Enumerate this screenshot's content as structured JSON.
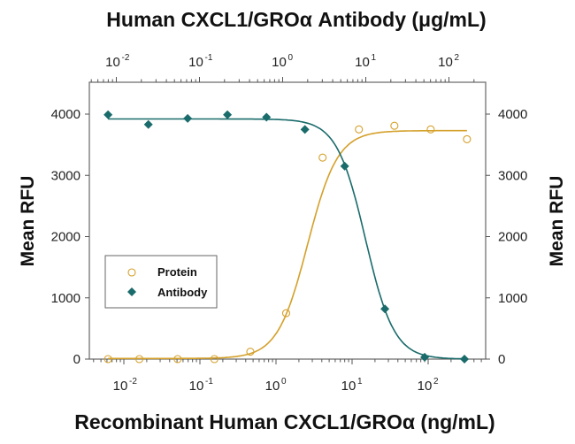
{
  "chart_data": {
    "type": "scatter",
    "title": "Human CXCL1/GROα Antibody (μg/mL)",
    "xlabel": "Recombinant Human CXCL1/GROα (ng/mL)",
    "ylabel": "Mean RFU",
    "ylabel_right": "Mean RFU",
    "x_scale": "log",
    "xlim": [
      0.004,
      700
    ],
    "ylim": [
      0,
      4500
    ],
    "x_ticks": [
      {
        "base": "10",
        "exp": "-2",
        "value": 0.01
      },
      {
        "base": "10",
        "exp": "-1",
        "value": 0.1
      },
      {
        "base": "10",
        "exp": "0",
        "value": 1
      },
      {
        "base": "10",
        "exp": "1",
        "value": 10
      },
      {
        "base": "10",
        "exp": "2",
        "value": 100
      }
    ],
    "top_x_ticks": [
      {
        "base": "10",
        "exp": "-2",
        "value": 0.01
      },
      {
        "base": "10",
        "exp": "-1",
        "value": 0.1
      },
      {
        "base": "10",
        "exp": "0",
        "value": 1
      },
      {
        "base": "10",
        "exp": "1",
        "value": 10
      },
      {
        "base": "10",
        "exp": "2",
        "value": 100
      }
    ],
    "y_ticks": [
      "0",
      "1000",
      "2000",
      "3000",
      "4000"
    ],
    "y_tick_values": [
      0,
      1000,
      2000,
      3000,
      4000
    ],
    "grid": false,
    "legend_position": "center-left",
    "series": [
      {
        "name": "Protein",
        "marker": "open-circle",
        "color": "#d4a02a",
        "x": [
          0.0062,
          0.016,
          0.051,
          0.155,
          0.46,
          1.36,
          4.1,
          12.3,
          36,
          108,
          324
        ],
        "y": [
          0,
          0,
          0,
          0,
          120,
          750,
          3290,
          3750,
          3810,
          3750,
          3590
        ],
        "fit": {
          "bottom": 10,
          "top": 3730,
          "ec50": 2.6,
          "hill": 2.2,
          "x_range": [
            0.0062,
            324
          ]
        }
      },
      {
        "name": "Antibody",
        "marker": "filled-diamond",
        "color": "#1a6b6b",
        "x": [
          0.0062,
          0.021,
          0.069,
          0.23,
          0.75,
          2.4,
          8.0,
          27,
          90,
          300
        ],
        "y": [
          3990,
          3830,
          3930,
          3990,
          3950,
          3750,
          3150,
          820,
          30,
          0
        ],
        "fit": {
          "bottom": 0,
          "top": 3920,
          "ec50": 15,
          "hill": 2.3,
          "x_range": [
            0.0062,
            300
          ]
        }
      }
    ]
  }
}
